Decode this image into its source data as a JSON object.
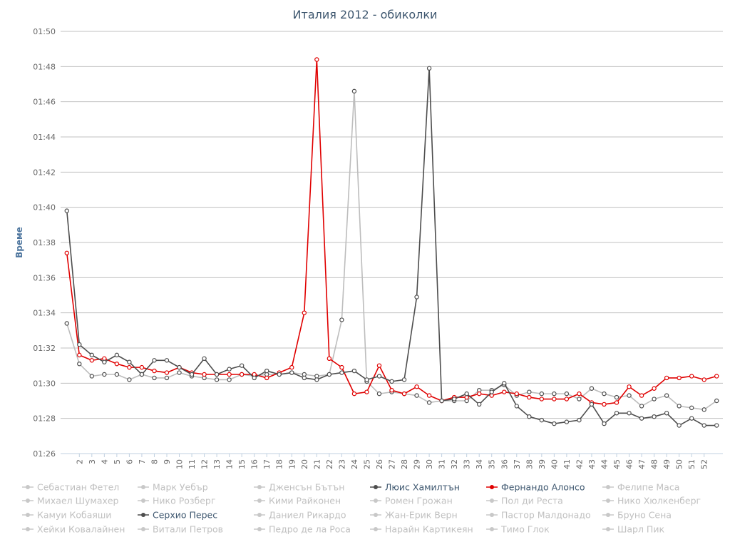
{
  "chart_data": {
    "type": "line",
    "title": "Италия 2012 - обиколки",
    "ylabel": "Време",
    "xlabel": "",
    "ylim": [
      86,
      110
    ],
    "y_ticks": [
      86,
      88,
      90,
      92,
      94,
      96,
      98,
      100,
      102,
      104,
      106,
      108,
      110
    ],
    "y_tick_labels": [
      "01:26",
      "01:28",
      "01:30",
      "01:32",
      "01:34",
      "01:36",
      "01:38",
      "01:40",
      "01:42",
      "01:44",
      "01:46",
      "01:48",
      "01:50"
    ],
    "x_ticks": [
      "2",
      "3",
      "4",
      "5",
      "6",
      "7",
      "8",
      "9",
      "10",
      "11",
      "12",
      "13",
      "14",
      "15",
      "16",
      "17",
      "18",
      "19",
      "20",
      "21",
      "22",
      "23",
      "24",
      "25",
      "26",
      "27",
      "28",
      "29",
      "30",
      "31",
      "32",
      "33",
      "34",
      "35",
      "36",
      "37",
      "38",
      "39",
      "40",
      "41",
      "42",
      "43",
      "44",
      "45",
      "46",
      "47",
      "48",
      "49",
      "50",
      "51",
      "52"
    ],
    "grid": true,
    "legend_position": "bottom",
    "series": [
      {
        "name": "Себастиан Фетел",
        "visible": false,
        "color": "#c8c8c8"
      },
      {
        "name": "Марк Уебър",
        "visible": false,
        "color": "#c8c8c8"
      },
      {
        "name": "Дженсън Бътън",
        "visible": false,
        "color": "#c8c8c8"
      },
      {
        "name": "Люис Хамилтън",
        "visible": true,
        "color": "#4d4d4d",
        "line_color": "#bdbdbd",
        "values": [
          93.4,
          91.1,
          90.4,
          90.5,
          90.5,
          90.2,
          90.5,
          90.3,
          90.3,
          90.6,
          90.4,
          90.3,
          90.2,
          90.2,
          90.5,
          90.4,
          90.5,
          90.5,
          90.6,
          90.5,
          90.4,
          90.5,
          93.6,
          106.6,
          90.1,
          89.4,
          89.5,
          89.4,
          89.3,
          88.9,
          89.0,
          89.0,
          89.0,
          89.6,
          89.6,
          89.9,
          89.3,
          89.5,
          89.4,
          89.4,
          89.4,
          89.1,
          89.7,
          89.4,
          89.2,
          89.3,
          88.7,
          89.1,
          89.3,
          88.7,
          88.6,
          88.5,
          89.0
        ]
      },
      {
        "name": "Фернандо Алонсо",
        "visible": true,
        "color": "#e00000",
        "values": [
          97.4,
          91.6,
          91.3,
          91.4,
          91.1,
          90.9,
          90.9,
          90.7,
          90.6,
          90.9,
          90.6,
          90.5,
          90.5,
          90.5,
          90.5,
          90.5,
          90.3,
          90.6,
          90.9,
          94.0,
          108.4,
          91.4,
          90.9,
          89.4,
          89.5,
          91.0,
          89.6,
          89.4,
          89.8,
          89.3,
          89.0,
          89.2,
          89.2,
          89.4,
          89.3,
          89.5,
          89.4,
          89.2,
          89.1,
          89.1,
          89.1,
          89.4,
          88.9,
          88.8,
          88.9,
          89.8,
          89.3,
          89.7,
          90.3,
          90.3,
          90.4,
          90.2,
          90.4
        ]
      },
      {
        "name": "Фелипе Маса",
        "visible": false,
        "color": "#c8c8c8"
      },
      {
        "name": "Михаел Шумахер",
        "visible": false,
        "color": "#c8c8c8"
      },
      {
        "name": "Нико Розберг",
        "visible": false,
        "color": "#c8c8c8"
      },
      {
        "name": "Кими Райконен",
        "visible": false,
        "color": "#c8c8c8"
      },
      {
        "name": "Ромен Грожан",
        "visible": false,
        "color": "#c8c8c8"
      },
      {
        "name": "Пол ди Реста",
        "visible": false,
        "color": "#c8c8c8"
      },
      {
        "name": "Нико Хюлкенберг",
        "visible": false,
        "color": "#c8c8c8"
      },
      {
        "name": "Камуи Кобаяши",
        "visible": false,
        "color": "#c8c8c8"
      },
      {
        "name": "Серхио Перес",
        "visible": true,
        "color": "#4d4d4d",
        "values": [
          99.8,
          92.2,
          91.6,
          91.2,
          91.6,
          91.2,
          90.5,
          91.3,
          91.3,
          90.9,
          90.5,
          91.4,
          90.5,
          90.8,
          91.0,
          90.3,
          90.7,
          90.5,
          90.6,
          90.3,
          90.2,
          90.5,
          90.6,
          90.7,
          90.2,
          90.4,
          90.1,
          90.2,
          94.9,
          107.9,
          89.0,
          89.1,
          89.4,
          88.8,
          89.5,
          90.0,
          88.7,
          88.1,
          87.9,
          87.7,
          87.8,
          87.9,
          88.8,
          87.7,
          88.3,
          88.3,
          88.0,
          88.1,
          88.3,
          87.6,
          88.0,
          87.6,
          87.6
        ]
      },
      {
        "name": "Даниел Рикардо",
        "visible": false,
        "color": "#c8c8c8"
      },
      {
        "name": "Жан-Ерик Верн",
        "visible": false,
        "color": "#c8c8c8"
      },
      {
        "name": "Пастор Малдонадо",
        "visible": false,
        "color": "#c8c8c8"
      },
      {
        "name": "Бруно Сена",
        "visible": false,
        "color": "#c8c8c8"
      },
      {
        "name": "Хейки Ковалайнен",
        "visible": false,
        "color": "#c8c8c8"
      },
      {
        "name": "Витали Петров",
        "visible": false,
        "color": "#c8c8c8"
      },
      {
        "name": "Педро де ла Роса",
        "visible": false,
        "color": "#c8c8c8"
      },
      {
        "name": "Нарайн Картикеян",
        "visible": false,
        "color": "#c8c8c8"
      },
      {
        "name": "Тимо Глок",
        "visible": false,
        "color": "#c8c8c8"
      },
      {
        "name": "Шарл Пик",
        "visible": false,
        "color": "#c8c8c8"
      }
    ]
  }
}
